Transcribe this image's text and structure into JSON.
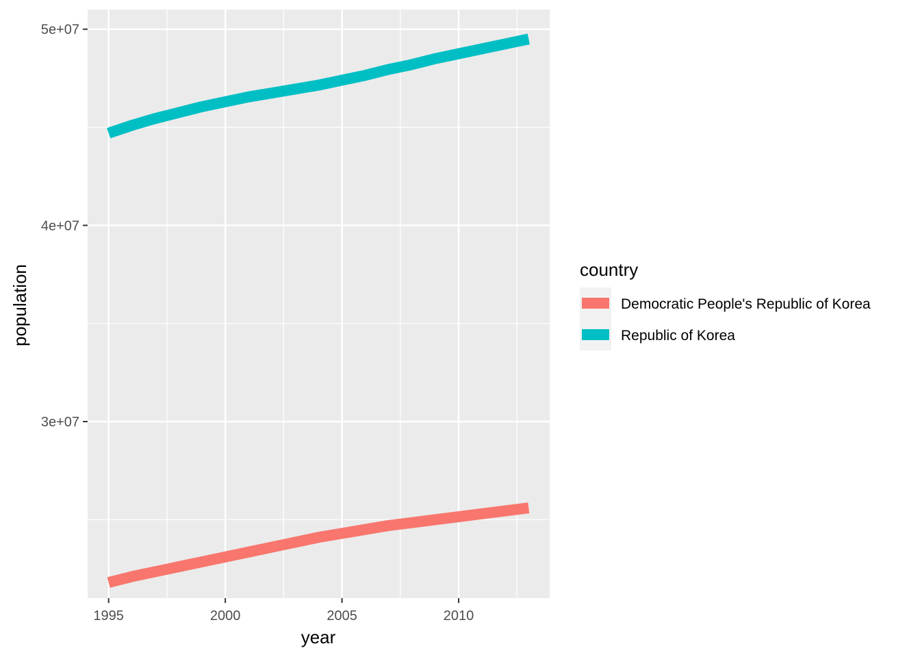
{
  "chart_data": {
    "type": "line",
    "xlabel": "year",
    "ylabel": "population",
    "xlim": [
      1994.1,
      2013.9
    ],
    "ylim": [
      21000000,
      51000000
    ],
    "x_ticks": [
      1995,
      2000,
      2005,
      2010
    ],
    "x_tick_labels": [
      "1995",
      "2000",
      "2005",
      "2010"
    ],
    "y_ticks": [
      30000000,
      40000000,
      50000000
    ],
    "y_tick_labels": [
      "3e+07",
      "4e+07",
      "5e+07"
    ],
    "grid": true,
    "legend": {
      "title": "country",
      "position": "right"
    },
    "x": [
      1995,
      1996,
      1997,
      1998,
      1999,
      2000,
      2001,
      2002,
      2003,
      2004,
      2005,
      2006,
      2007,
      2008,
      2009,
      2010,
      2011,
      2012,
      2013
    ],
    "series": [
      {
        "name": "Democratic People's Republic of Korea",
        "color": "#F8766D",
        "values": [
          21800000,
          22100000,
          22350000,
          22600000,
          22850000,
          23100000,
          23350000,
          23600000,
          23850000,
          24100000,
          24300000,
          24500000,
          24700000,
          24850000,
          25000000,
          25150000,
          25300000,
          25450000,
          25600000
        ]
      },
      {
        "name": "Republic of Korea",
        "color": "#00BFC4",
        "values": [
          44700000,
          45100000,
          45450000,
          45750000,
          46050000,
          46300000,
          46550000,
          46750000,
          46950000,
          47150000,
          47400000,
          47650000,
          47950000,
          48200000,
          48500000,
          48750000,
          49000000,
          49250000,
          49500000
        ]
      }
    ]
  }
}
